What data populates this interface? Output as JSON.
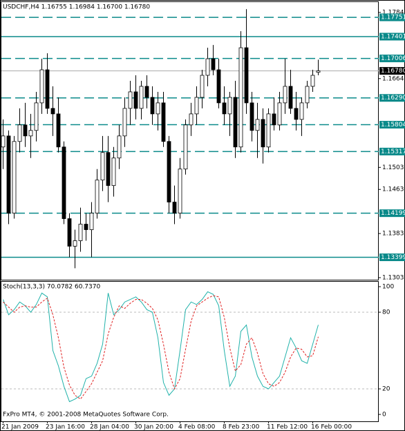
{
  "chart_data": [
    {
      "type": "candlestick",
      "title": "USDCHF,H4  1.16755 1.16984 1.16700 1.16780",
      "categories": [
        "21 Jan 2009",
        null,
        null,
        null,
        null,
        null,
        null,
        null,
        "23 Jan 16:00",
        null,
        null,
        null,
        null,
        null,
        null,
        null,
        "28 Jan 04:00",
        null,
        null,
        null,
        null,
        null,
        null,
        null,
        "30 Jan 20:00",
        null,
        null,
        null,
        null,
        null,
        null,
        null,
        "4 Feb 08:00",
        null,
        null,
        null,
        null,
        null,
        null,
        null,
        "8 Feb 23:00",
        null,
        null,
        null,
        null,
        null,
        null,
        null,
        "11 Feb 12:00",
        null,
        null,
        null,
        null,
        null,
        null,
        null,
        "16 Feb 00:00",
        null
      ],
      "open": [
        1.154,
        1.156,
        1.142,
        1.155,
        1.158,
        1.156,
        1.157,
        1.162,
        1.168,
        1.161,
        1.16,
        1.154,
        1.141,
        1.136,
        1.137,
        1.14,
        1.139,
        1.142,
        1.148,
        1.153,
        1.147,
        1.152,
        1.156,
        1.161,
        1.164,
        1.161,
        1.165,
        1.163,
        1.16,
        1.162,
        1.155,
        1.144,
        1.142,
        1.15,
        1.158,
        1.16,
        1.163,
        1.167,
        1.17,
        1.168,
        1.162,
        1.16,
        1.163,
        1.154,
        1.172,
        1.162,
        1.157,
        1.159,
        1.154,
        1.16,
        1.158,
        1.162,
        1.165,
        1.161,
        1.159,
        1.162,
        1.165,
        1.16755
      ],
      "high": [
        1.159,
        1.157,
        1.156,
        1.161,
        1.162,
        1.16,
        1.164,
        1.17,
        1.171,
        1.165,
        1.163,
        1.155,
        1.142,
        1.139,
        1.143,
        1.142,
        1.144,
        1.15,
        1.156,
        1.156,
        1.154,
        1.158,
        1.163,
        1.166,
        1.167,
        1.166,
        1.167,
        1.165,
        1.164,
        1.164,
        1.156,
        1.147,
        1.152,
        1.159,
        1.162,
        1.165,
        1.168,
        1.172,
        1.1725,
        1.17,
        1.165,
        1.164,
        1.166,
        1.175,
        1.179,
        1.164,
        1.162,
        1.161,
        1.161,
        1.163,
        1.164,
        1.17,
        1.168,
        1.164,
        1.163,
        1.166,
        1.168,
        1.16984
      ],
      "low": [
        1.15,
        1.14,
        1.141,
        1.153,
        1.154,
        1.152,
        1.155,
        1.16,
        1.16,
        1.156,
        1.153,
        1.14,
        1.134,
        1.132,
        1.135,
        1.137,
        1.134,
        1.141,
        1.146,
        1.144,
        1.145,
        1.15,
        1.154,
        1.158,
        1.159,
        1.159,
        1.161,
        1.158,
        1.157,
        1.154,
        1.142,
        1.14,
        1.141,
        1.149,
        1.156,
        1.158,
        1.161,
        1.165,
        1.167,
        1.161,
        1.158,
        1.156,
        1.152,
        1.153,
        1.16,
        1.155,
        1.152,
        1.151,
        1.153,
        1.157,
        1.157,
        1.16,
        1.16,
        1.157,
        1.156,
        1.161,
        1.164,
        1.167
      ],
      "close": [
        1.156,
        1.142,
        1.155,
        1.158,
        1.156,
        1.157,
        1.162,
        1.168,
        1.161,
        1.16,
        1.154,
        1.141,
        1.136,
        1.137,
        1.14,
        1.139,
        1.142,
        1.148,
        1.153,
        1.147,
        1.152,
        1.156,
        1.161,
        1.164,
        1.161,
        1.165,
        1.163,
        1.16,
        1.162,
        1.155,
        1.144,
        1.142,
        1.15,
        1.158,
        1.16,
        1.163,
        1.167,
        1.17,
        1.168,
        1.162,
        1.16,
        1.163,
        1.154,
        1.172,
        1.162,
        1.157,
        1.159,
        1.154,
        1.16,
        1.158,
        1.162,
        1.165,
        1.161,
        1.159,
        1.162,
        1.165,
        1.167,
        1.1678
      ],
      "ylim": [
        1.12992,
        1.18028
      ],
      "yticks": [
        {
          "value": 1.1784,
          "label": "1.17840"
        },
        {
          "value": 1.1664,
          "label": "1.16640"
        },
        {
          "value": 1.1503,
          "label": "1.15030"
        },
        {
          "value": 1.1463,
          "label": "1.14630"
        },
        {
          "value": 1.1383,
          "label": "1.13830"
        },
        {
          "value": 1.1303,
          "label": "1.13030"
        }
      ],
      "levels": [
        {
          "value": 1.17751,
          "label": "1.17751",
          "style": "dashed"
        },
        {
          "value": 1.17401,
          "label": "1.17401",
          "style": "solid"
        },
        {
          "value": 1.17006,
          "label": "1.17006",
          "style": "dashed"
        },
        {
          "value": 1.1629,
          "label": "1.16290",
          "style": "dashed"
        },
        {
          "value": 1.15804,
          "label": "1.15804",
          "style": "dashed"
        },
        {
          "value": 1.15317,
          "label": "1.15317",
          "style": "dashed"
        },
        {
          "value": 1.14199,
          "label": "1.14199",
          "style": "dashed"
        },
        {
          "value": 1.13399,
          "label": "1.13399",
          "style": "solid"
        }
      ],
      "level_color": "#0a8a8a",
      "bid": {
        "value": 1.1678,
        "label": "1.16780"
      },
      "up_color": "#ffffff",
      "down_color": "#000000"
    },
    {
      "type": "line",
      "title": "Stoch(13,3,3) 70.0782 60.7370",
      "footer": "FxPro MT4, © 2001-2008 MetaQuotes Software Corp.",
      "series": [
        {
          "color": "#20b2aa",
          "style": "solid",
          "values": [
            90,
            78,
            82,
            88,
            85,
            80,
            86,
            95,
            92,
            50,
            38,
            22,
            10,
            12,
            15,
            28,
            30,
            40,
            55,
            95,
            78,
            82,
            88,
            90,
            92,
            88,
            82,
            80,
            60,
            25,
            15,
            20,
            50,
            82,
            88,
            86,
            90,
            96,
            94,
            85,
            50,
            22,
            30,
            65,
            70,
            45,
            30,
            22,
            20,
            25,
            30,
            45,
            60,
            52,
            42,
            40,
            55,
            70.0782
          ]
        },
        {
          "color": "#e02020",
          "style": "dashed",
          "values": [
            88,
            84,
            80,
            84,
            85,
            84,
            84,
            88,
            91,
            78,
            60,
            37,
            23,
            15,
            12,
            18,
            24,
            33,
            42,
            63,
            76,
            85,
            83,
            87,
            90,
            90,
            87,
            83,
            74,
            55,
            33,
            20,
            28,
            51,
            73,
            85,
            88,
            91,
            93,
            92,
            76,
            52,
            34,
            39,
            55,
            60,
            48,
            32,
            24,
            22,
            25,
            33,
            45,
            52,
            51,
            45,
            46,
            60.737
          ]
        }
      ],
      "ylim": [
        -5.4,
        103.8
      ],
      "yticks": [
        100,
        80,
        20,
        0
      ],
      "grid_lines": [
        80,
        20
      ]
    }
  ]
}
